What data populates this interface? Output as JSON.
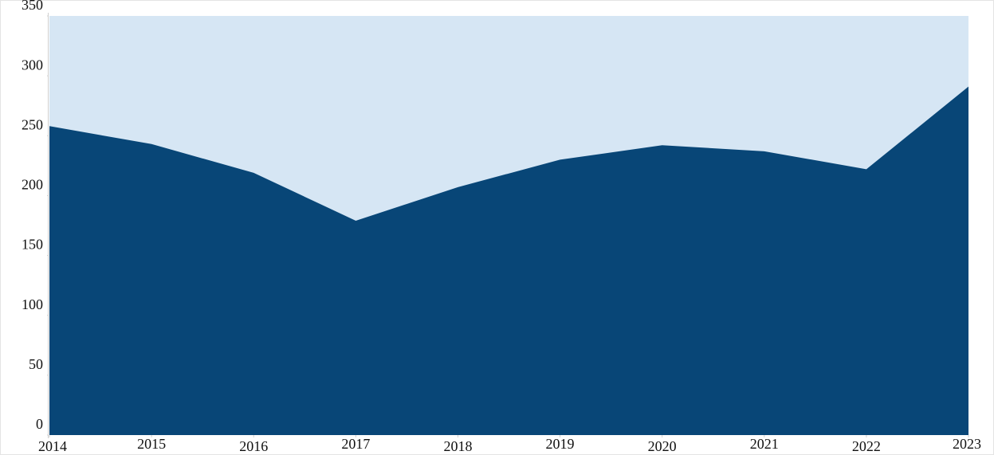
{
  "chart_data": {
    "type": "area",
    "x": [
      2014,
      2015,
      2016,
      2017,
      2018,
      2019,
      2020,
      2021,
      2022,
      2023
    ],
    "values": [
      258,
      243,
      219,
      179,
      207,
      230,
      242,
      237,
      222,
      291
    ],
    "color": "#084677",
    "plot_background": "#d6e6f4",
    "xlim": [
      2014,
      2023
    ],
    "xticks": [
      2014,
      2015,
      2016,
      2017,
      2018,
      2019,
      2020,
      2021,
      2022,
      2023
    ],
    "ylim": [
      0,
      350
    ],
    "yticks": [
      0,
      50,
      100,
      150,
      200,
      250,
      300,
      350
    ]
  }
}
